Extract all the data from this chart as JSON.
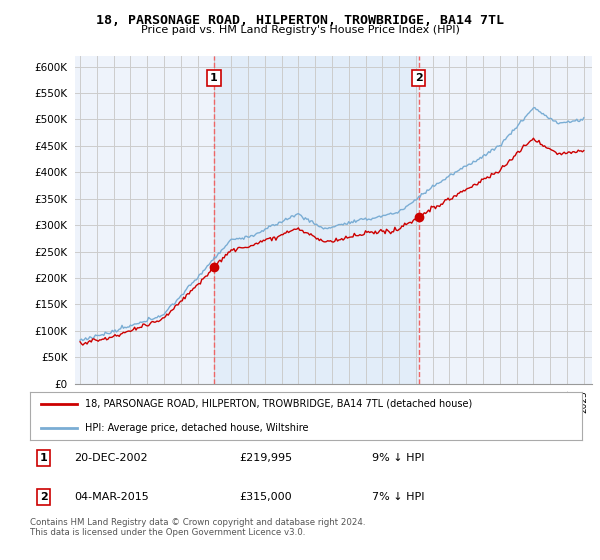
{
  "title": "18, PARSONAGE ROAD, HILPERTON, TROWBRIDGE, BA14 7TL",
  "subtitle": "Price paid vs. HM Land Registry's House Price Index (HPI)",
  "legend_line1": "18, PARSONAGE ROAD, HILPERTON, TROWBRIDGE, BA14 7TL (detached house)",
  "legend_line2": "HPI: Average price, detached house, Wiltshire",
  "transaction1": {
    "label": "1",
    "date": "20-DEC-2002",
    "price": 219995,
    "hpi_diff": "9% ↓ HPI"
  },
  "transaction2": {
    "label": "2",
    "date": "04-MAR-2015",
    "price": 315000,
    "hpi_diff": "7% ↓ HPI"
  },
  "footnote": "Contains HM Land Registry data © Crown copyright and database right 2024.\nThis data is licensed under the Open Government Licence v3.0.",
  "red_color": "#cc0000",
  "blue_color": "#7aadd4",
  "shade_color": "#ddeeff",
  "dashed_color": "#ee6666",
  "background_color": "#ffffff",
  "plot_bg_color": "#f0f4ff",
  "grid_color": "#cccccc",
  "ylim": [
    0,
    620000
  ],
  "yticks": [
    0,
    50000,
    100000,
    150000,
    200000,
    250000,
    300000,
    350000,
    400000,
    450000,
    500000,
    550000,
    600000
  ],
  "x_start_year": 1995,
  "x_end_year": 2025,
  "transaction1_year": 2002.97,
  "transaction2_year": 2015.17
}
